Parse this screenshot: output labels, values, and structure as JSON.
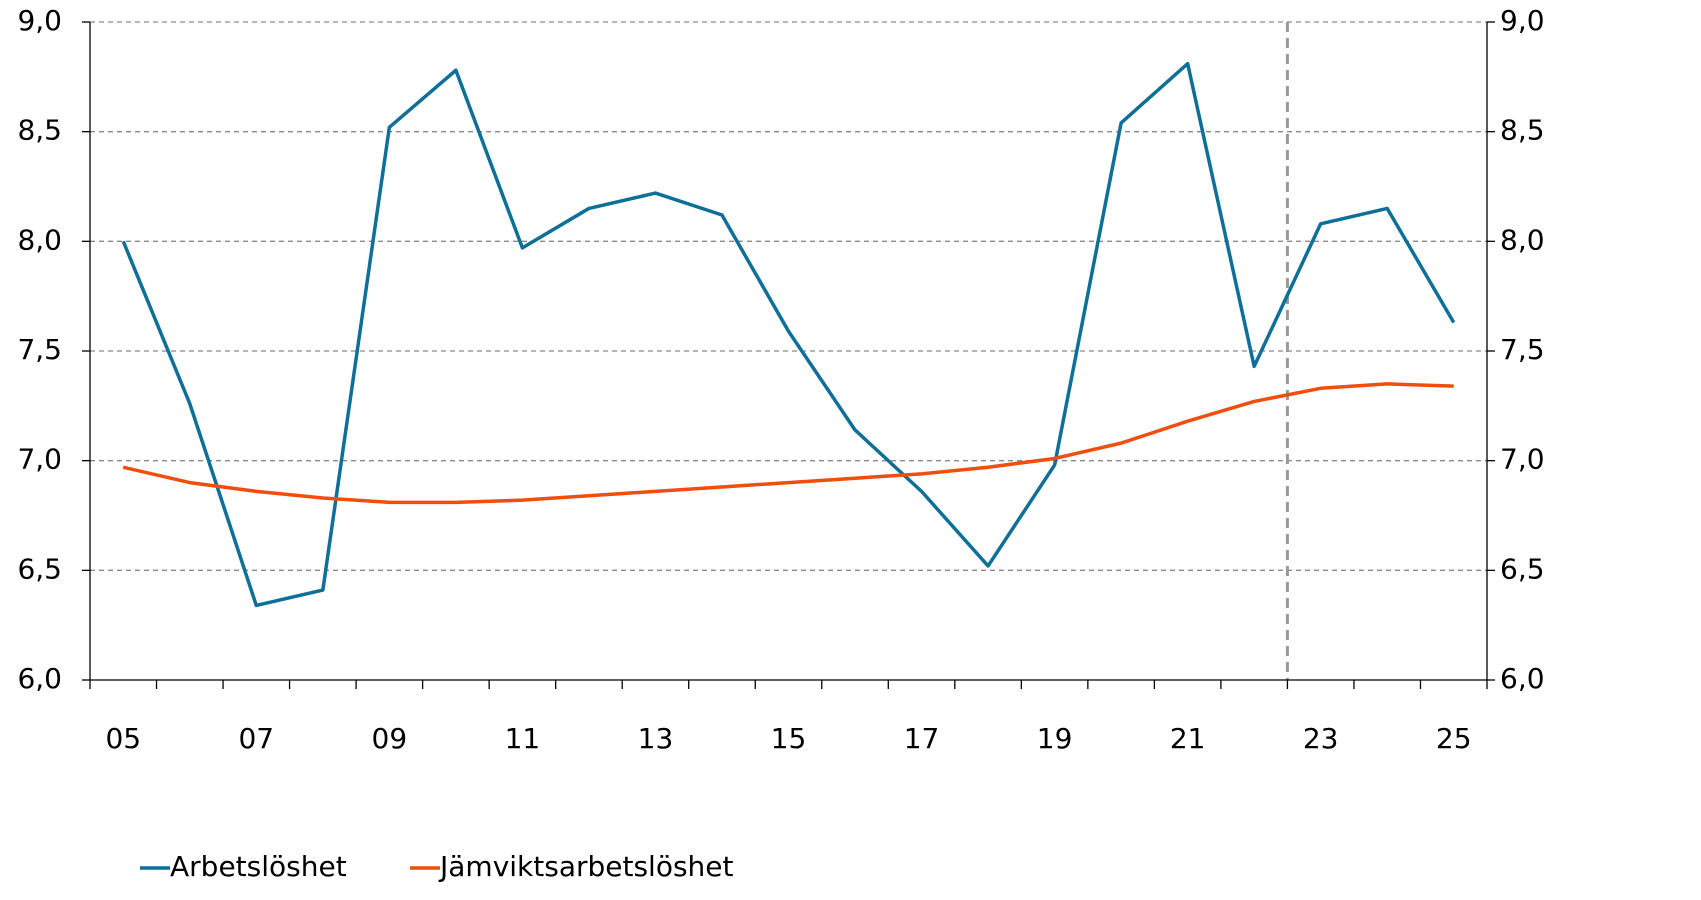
{
  "chart_data": {
    "type": "line",
    "categories": [
      "05",
      null,
      "07",
      null,
      "09",
      null,
      "11",
      null,
      "13",
      null,
      "15",
      null,
      "17",
      null,
      "19",
      null,
      "21",
      null,
      "23",
      null,
      "25"
    ],
    "series": [
      {
        "name": "Arbetslöshet",
        "color": "#0e6f98",
        "values": [
          8.0,
          7.26,
          6.34,
          6.41,
          8.52,
          8.78,
          7.97,
          8.15,
          8.22,
          8.12,
          7.59,
          7.14,
          6.86,
          6.52,
          6.98,
          8.54,
          8.81,
          7.43,
          8.08,
          8.15,
          7.63
        ]
      },
      {
        "name": "Jämviktsarbetslöshet",
        "color": "#f04e0c",
        "values": [
          6.97,
          6.9,
          6.86,
          6.83,
          6.81,
          6.81,
          6.82,
          6.84,
          6.86,
          6.88,
          6.9,
          6.92,
          6.94,
          6.97,
          7.01,
          7.08,
          7.18,
          7.27,
          7.33,
          7.35,
          7.34
        ]
      }
    ],
    "ylim": [
      6.0,
      9.0
    ],
    "yticks": [
      {
        "value": 6.0,
        "label": "6,0"
      },
      {
        "value": 6.5,
        "label": "6,5"
      },
      {
        "value": 7.0,
        "label": "7,0"
      },
      {
        "value": 7.5,
        "label": "7,5"
      },
      {
        "value": 8.0,
        "label": "8,0"
      },
      {
        "value": 8.5,
        "label": "8,5"
      },
      {
        "value": 9.0,
        "label": "9,0"
      }
    ],
    "y2lim": [
      6.0,
      9.0
    ],
    "y2ticks": [
      {
        "value": 6.0,
        "label": "6,0"
      },
      {
        "value": 6.5,
        "label": "6,5"
      },
      {
        "value": 7.0,
        "label": "7,0"
      },
      {
        "value": 7.5,
        "label": "7,5"
      },
      {
        "value": 8.0,
        "label": "8,0"
      },
      {
        "value": 8.5,
        "label": "8,5"
      },
      {
        "value": 9.0,
        "label": "9,0"
      }
    ],
    "grid": true,
    "legend": "bottom",
    "vline_category": "23"
  }
}
